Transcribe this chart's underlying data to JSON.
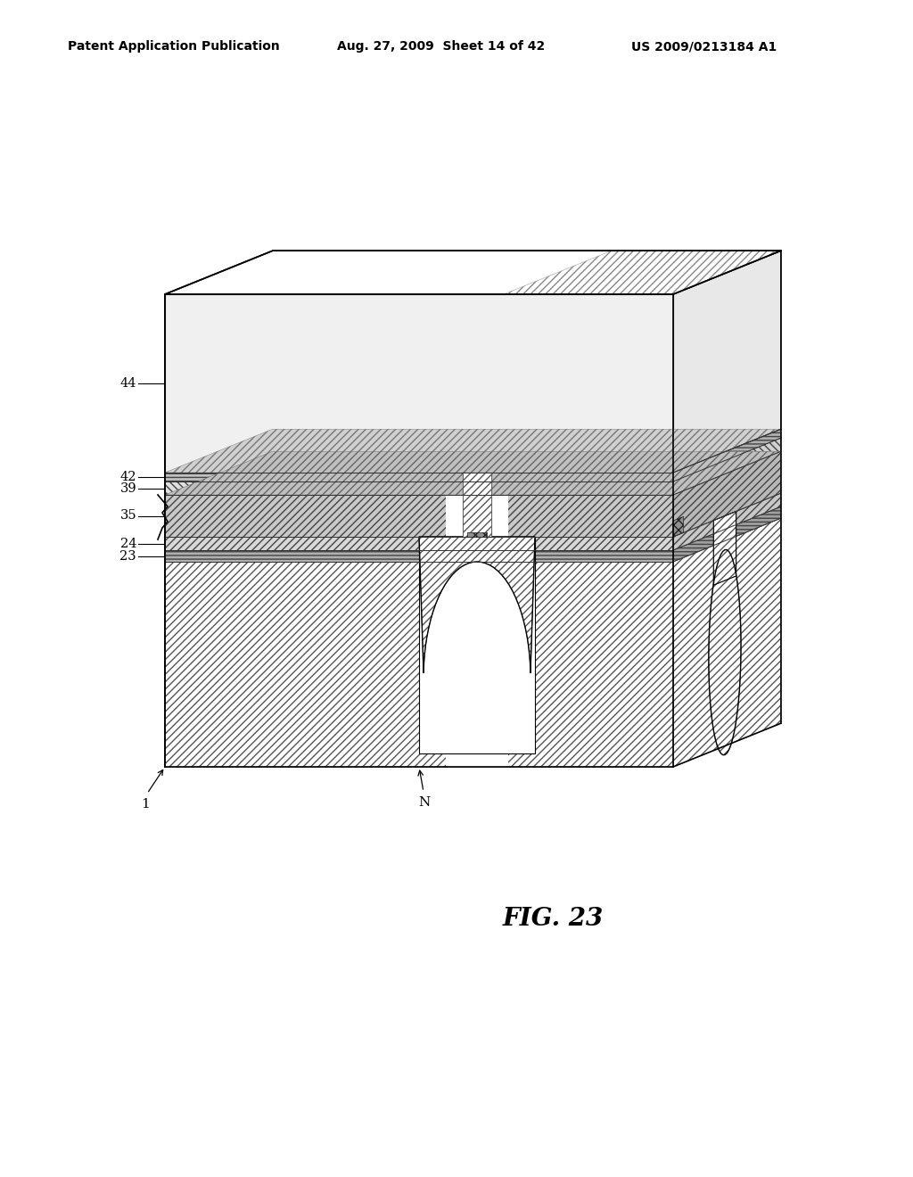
{
  "header_left": "Patent Application Publication",
  "header_mid": "Aug. 27, 2009  Sheet 14 of 42",
  "header_right": "US 2009/0213184 A1",
  "figure_label": "FIG. 23",
  "bg_color": "#ffffff"
}
